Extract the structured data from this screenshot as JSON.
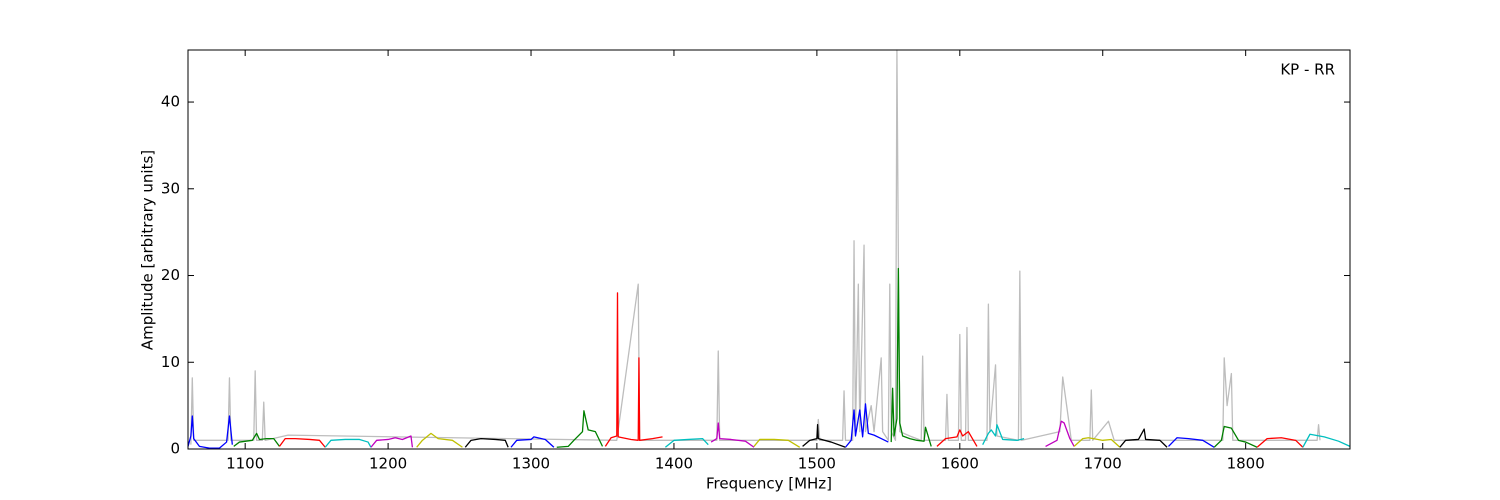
{
  "chart_data": {
    "type": "line",
    "annotation": "KP - RR",
    "x_label": "Frequency [MHz]",
    "y_label": "Amplitude [arbitrary units]",
    "xlim": [
      1060,
      1873
    ],
    "ylim": [
      0,
      46
    ],
    "xticks": [
      1100,
      1200,
      1300,
      1400,
      1500,
      1600,
      1700,
      1800
    ],
    "yticks": [
      0,
      10,
      20,
      30,
      40
    ],
    "series": [
      {
        "color": "#bdbdbd",
        "x": [
          1062,
          1063,
          1064,
          1088,
          1089,
          1090,
          1106,
          1107,
          1108,
          1112,
          1113,
          1114,
          1130,
          1360,
          1375,
          1376,
          1430,
          1431,
          1432,
          1500,
          1501,
          1502,
          1518,
          1519,
          1520,
          1525,
          1526,
          1527,
          1529,
          1530,
          1533,
          1534,
          1538,
          1540,
          1545,
          1546,
          1550,
          1551,
          1552,
          1555,
          1556,
          1557,
          1558,
          1565,
          1573,
          1574,
          1575,
          1590,
          1591,
          1592,
          1599,
          1600,
          1601,
          1604,
          1605,
          1606,
          1619,
          1620,
          1621,
          1625,
          1626,
          1641,
          1642,
          1643,
          1670,
          1672,
          1676,
          1678,
          1691,
          1692,
          1693,
          1704,
          1708,
          1784,
          1785,
          1787,
          1790,
          1791,
          1850,
          1851,
          1852
        ],
        "values": [
          0.5,
          8.2,
          1,
          1,
          8.2,
          1,
          1,
          9,
          1,
          1,
          5.4,
          1,
          1.6,
          1,
          19,
          1,
          1,
          11.3,
          1,
          1,
          3.4,
          1,
          1,
          6.7,
          1,
          1,
          24,
          2,
          19,
          2,
          23.5,
          2,
          5,
          2,
          10.5,
          2,
          1,
          19,
          2,
          1,
          46,
          22.3,
          2,
          1.5,
          1,
          10.7,
          1,
          1,
          6.3,
          1,
          1,
          13.2,
          1,
          1,
          14,
          1,
          1,
          16.7,
          2,
          9.7,
          1.5,
          1,
          20.5,
          1,
          2,
          8.3,
          3.5,
          1,
          1,
          6.8,
          1,
          3.2,
          1,
          1,
          10.5,
          5,
          8.7,
          1,
          1,
          2.8,
          1
        ]
      },
      {
        "color": "#0000ff",
        "x": [
          1060,
          1062,
          1063,
          1064,
          1068,
          1075,
          1082,
          1087,
          1089,
          1091
        ],
        "values": [
          0.3,
          1.5,
          3.8,
          1.2,
          0.3,
          0.1,
          0.1,
          0.8,
          3.8,
          0.5
        ]
      },
      {
        "color": "#008000",
        "x": [
          1092,
          1096,
          1105,
          1108,
          1110,
          1115,
          1120,
          1124
        ],
        "values": [
          0.3,
          0.8,
          1.0,
          1.8,
          1.1,
          1.2,
          1.2,
          0.3
        ]
      },
      {
        "color": "#ff0000",
        "x": [
          1124,
          1128,
          1135,
          1145,
          1152,
          1156
        ],
        "values": [
          0.3,
          1.2,
          1.2,
          1.1,
          1.0,
          0.2
        ]
      },
      {
        "color": "#00bfbf",
        "x": [
          1156,
          1160,
          1170,
          1180,
          1186,
          1188
        ],
        "values": [
          0.2,
          1.0,
          1.1,
          1.1,
          0.8,
          0.2
        ]
      },
      {
        "color": "#bf00bf",
        "x": [
          1188,
          1192,
          1200,
          1205,
          1210,
          1216,
          1217
        ],
        "values": [
          0.2,
          1.0,
          1.1,
          1.3,
          1.1,
          1.5,
          0.2
        ]
      },
      {
        "color": "#bfbf00",
        "x": [
          1220,
          1224,
          1230,
          1235,
          1245,
          1252
        ],
        "values": [
          0.2,
          1.0,
          1.8,
          1.2,
          1.0,
          0.2
        ]
      },
      {
        "color": "#000000",
        "x": [
          1254,
          1258,
          1265,
          1275,
          1282,
          1284
        ],
        "values": [
          0.2,
          1.0,
          1.2,
          1.1,
          1.0,
          0.2
        ]
      },
      {
        "color": "#0000ff",
        "x": [
          1286,
          1290,
          1300,
          1302,
          1310,
          1316
        ],
        "values": [
          0.2,
          1.0,
          1.1,
          1.4,
          1.1,
          0.2
        ]
      },
      {
        "color": "#008000",
        "x": [
          1318,
          1326,
          1330,
          1336,
          1337,
          1340,
          1345,
          1350
        ],
        "values": [
          0.2,
          0.3,
          1.0,
          2.0,
          4.4,
          2.2,
          2.0,
          0.3
        ]
      },
      {
        "color": "#ff0000",
        "x": [
          1352,
          1356,
          1360,
          1360.5,
          1361,
          1370,
          1375,
          1375.5,
          1376,
          1385,
          1392
        ],
        "values": [
          0.3,
          1.3,
          1.5,
          18.0,
          1.4,
          1.1,
          1.0,
          10.5,
          1.0,
          1.2,
          1.4
        ]
      },
      {
        "color": "#00bfbf",
        "x": [
          1394,
          1400,
          1410,
          1420,
          1424
        ],
        "values": [
          0.2,
          1.0,
          1.1,
          1.2,
          0.5
        ]
      },
      {
        "color": "#bf00bf",
        "x": [
          1426,
          1430,
          1431,
          1432,
          1440,
          1450,
          1456
        ],
        "values": [
          0.8,
          1.2,
          3.0,
          1.2,
          1.1,
          0.9,
          0.2
        ]
      },
      {
        "color": "#bfbf00",
        "x": [
          1456,
          1460,
          1470,
          1480,
          1488
        ],
        "values": [
          0.3,
          1.1,
          1.1,
          1.0,
          0.2
        ]
      },
      {
        "color": "#000000",
        "x": [
          1490,
          1495,
          1500,
          1500.5,
          1501,
          1510,
          1520
        ],
        "values": [
          0.3,
          1.0,
          1.2,
          2.8,
          1.2,
          0.8,
          0.2
        ]
      },
      {
        "color": "#0000ff",
        "x": [
          1520,
          1524,
          1526,
          1527,
          1530,
          1532,
          1534,
          1536,
          1540,
          1545,
          1550
        ],
        "values": [
          0.2,
          1.0,
          4.5,
          1.5,
          4.5,
          1.4,
          5.2,
          1.8,
          1.6,
          1.2,
          0.8
        ]
      },
      {
        "color": "#008000",
        "x": [
          1552,
          1553,
          1554,
          1556,
          1557,
          1558,
          1560,
          1565,
          1570,
          1575,
          1576,
          1580
        ],
        "values": [
          0.8,
          7.0,
          1.5,
          3.5,
          20.8,
          3.0,
          1.5,
          1.2,
          1.0,
          0.9,
          2.5,
          0.3
        ]
      },
      {
        "color": "#ff0000",
        "x": [
          1584,
          1590,
          1598,
          1600,
          1602,
          1606,
          1612
        ],
        "values": [
          0.3,
          1.2,
          1.4,
          2.2,
          1.5,
          2.0,
          0.3
        ]
      },
      {
        "color": "#00bfbf",
        "x": [
          1616,
          1620,
          1622,
          1625,
          1626,
          1630,
          1640,
          1645
        ],
        "values": [
          0.5,
          1.8,
          2.2,
          1.5,
          2.8,
          1.1,
          1.0,
          1.2
        ]
      },
      {
        "color": "#bf00bf",
        "x": [
          1660,
          1668,
          1671,
          1673,
          1677,
          1680
        ],
        "values": [
          0.3,
          1.0,
          3.2,
          3.0,
          1.2,
          0.3
        ]
      },
      {
        "color": "#bfbf00",
        "x": [
          1680,
          1686,
          1690,
          1700,
          1706,
          1712
        ],
        "values": [
          0.3,
          1.2,
          1.3,
          1.0,
          1.1,
          0.2
        ]
      },
      {
        "color": "#000000",
        "x": [
          1712,
          1716,
          1725,
          1729,
          1730,
          1740,
          1745
        ],
        "values": [
          0.2,
          1.0,
          1.1,
          2.3,
          1.1,
          1.0,
          0.2
        ]
      },
      {
        "color": "#0000ff",
        "x": [
          1746,
          1752,
          1760,
          1770,
          1778
        ],
        "values": [
          0.3,
          1.3,
          1.2,
          1.0,
          0.2
        ]
      },
      {
        "color": "#008000",
        "x": [
          1778,
          1783,
          1785,
          1790,
          1795,
          1800,
          1808
        ],
        "values": [
          0.2,
          1.0,
          2.6,
          2.4,
          1.0,
          0.8,
          0.2
        ]
      },
      {
        "color": "#ff0000",
        "x": [
          1808,
          1815,
          1825,
          1835,
          1840
        ],
        "values": [
          0.2,
          1.2,
          1.3,
          1.0,
          0.2
        ]
      },
      {
        "color": "#00bfbf",
        "x": [
          1840,
          1845,
          1855,
          1865,
          1873
        ],
        "values": [
          0.2,
          1.7,
          1.4,
          0.9,
          0.3
        ]
      }
    ]
  }
}
